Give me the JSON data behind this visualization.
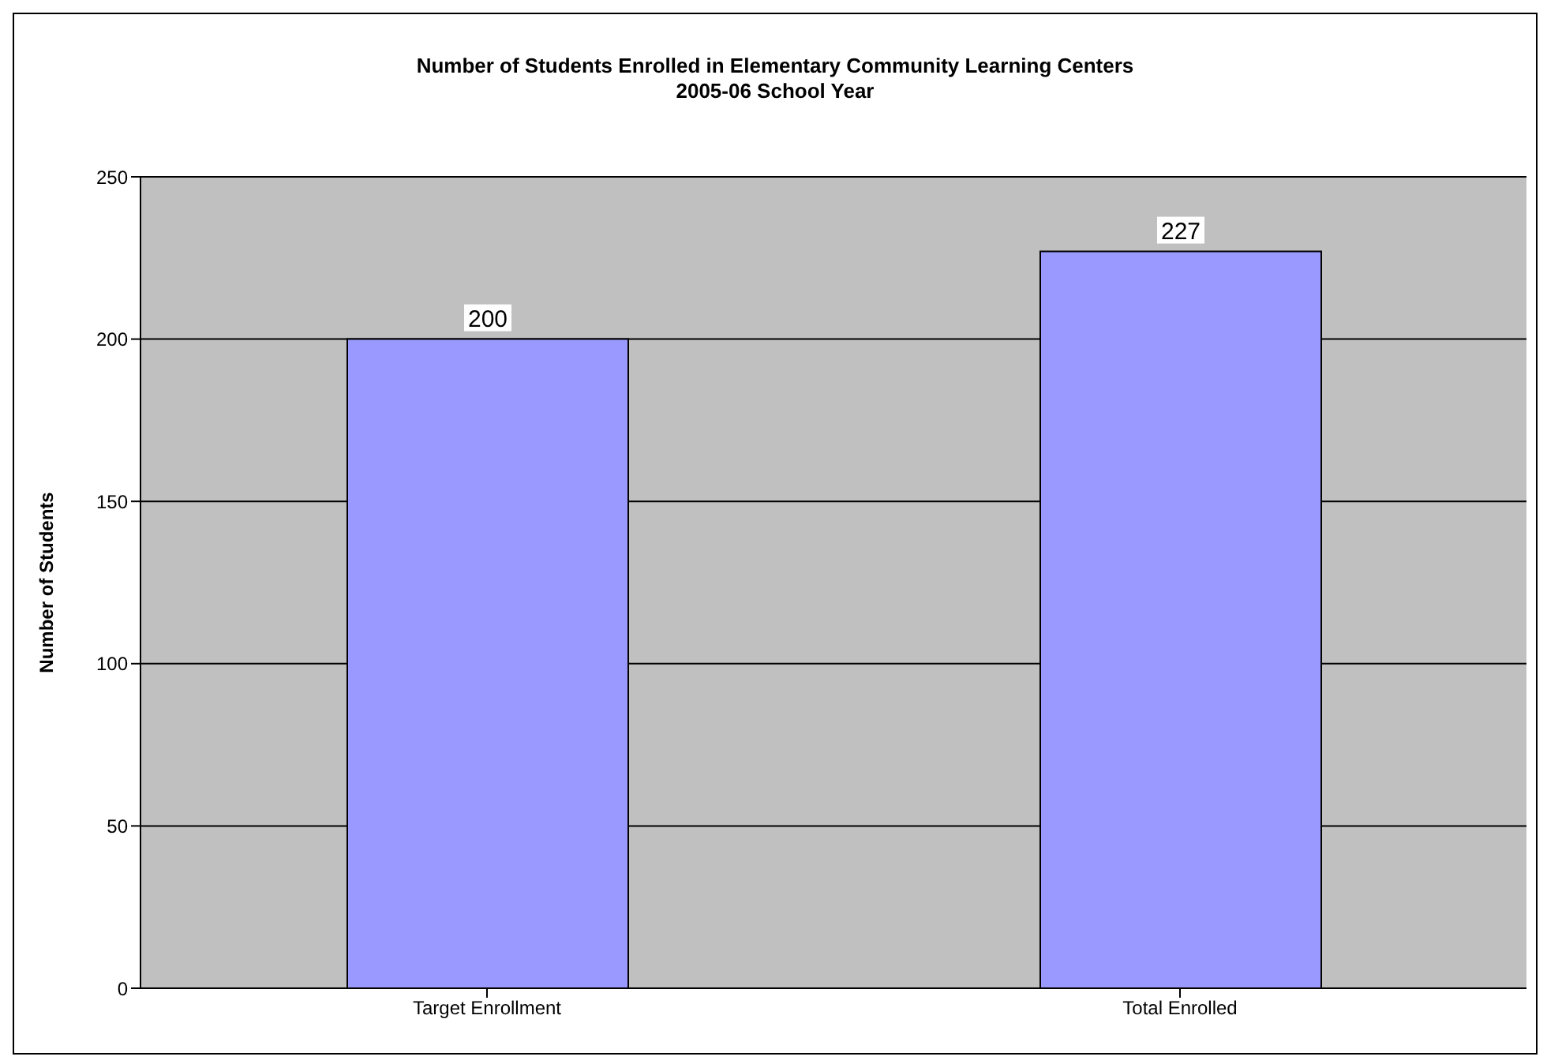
{
  "chart_data": {
    "type": "bar",
    "title": "Number of Students Enrolled in Elementary Community Learning Centers",
    "subtitle": "2005-06 School Year",
    "ylabel": "Number of Students",
    "categories": [
      "Target Enrollment",
      "Total Enrolled"
    ],
    "values": [
      200,
      227
    ],
    "color": "#9999ff",
    "ylim": [
      0,
      250
    ],
    "yticks": [
      0,
      50,
      100,
      150,
      200,
      250
    ],
    "grid": "y",
    "data_labels": true,
    "legend": false
  }
}
